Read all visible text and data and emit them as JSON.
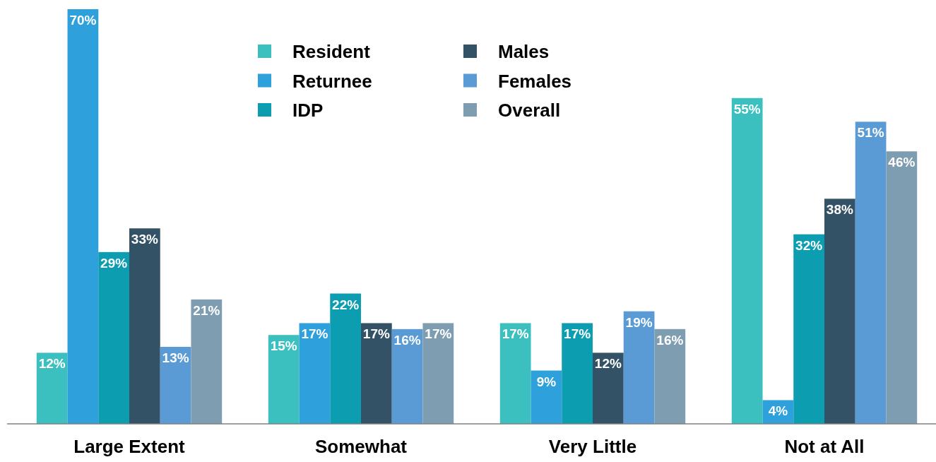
{
  "chart_data": {
    "type": "bar",
    "categories": [
      "Large Extent",
      "Somewhat",
      "Very Little",
      "Not at All"
    ],
    "series": [
      {
        "name": "Resident",
        "color": "#3bbfbf",
        "values": [
          12,
          15,
          17,
          55
        ],
        "value_labels": [
          "12%",
          "15%",
          "17%",
          "55%"
        ]
      },
      {
        "name": "Returnee",
        "color": "#2ea0db",
        "values": [
          70,
          17,
          9,
          4
        ],
        "value_labels": [
          "70%",
          "17%",
          "9%",
          "4%"
        ]
      },
      {
        "name": "IDP",
        "color": "#0c9db0",
        "values": [
          29,
          22,
          17,
          32
        ],
        "value_labels": [
          "29%",
          "22%",
          "17%",
          "32%"
        ]
      },
      {
        "name": "Males",
        "color": "#335266",
        "values": [
          33,
          17,
          12,
          38
        ],
        "value_labels": [
          "33%",
          "17%",
          "12%",
          "38%"
        ]
      },
      {
        "name": "Females",
        "color": "#5b9bd5",
        "values": [
          13,
          16,
          19,
          51
        ],
        "value_labels": [
          "13%",
          "16%",
          "19%",
          "51%"
        ]
      },
      {
        "name": "Overall",
        "color": "#7f9db0",
        "values": [
          21,
          17,
          16,
          46
        ],
        "value_labels": [
          "21%",
          "17%",
          "16%",
          "46%"
        ]
      }
    ],
    "legend": "top"
  }
}
